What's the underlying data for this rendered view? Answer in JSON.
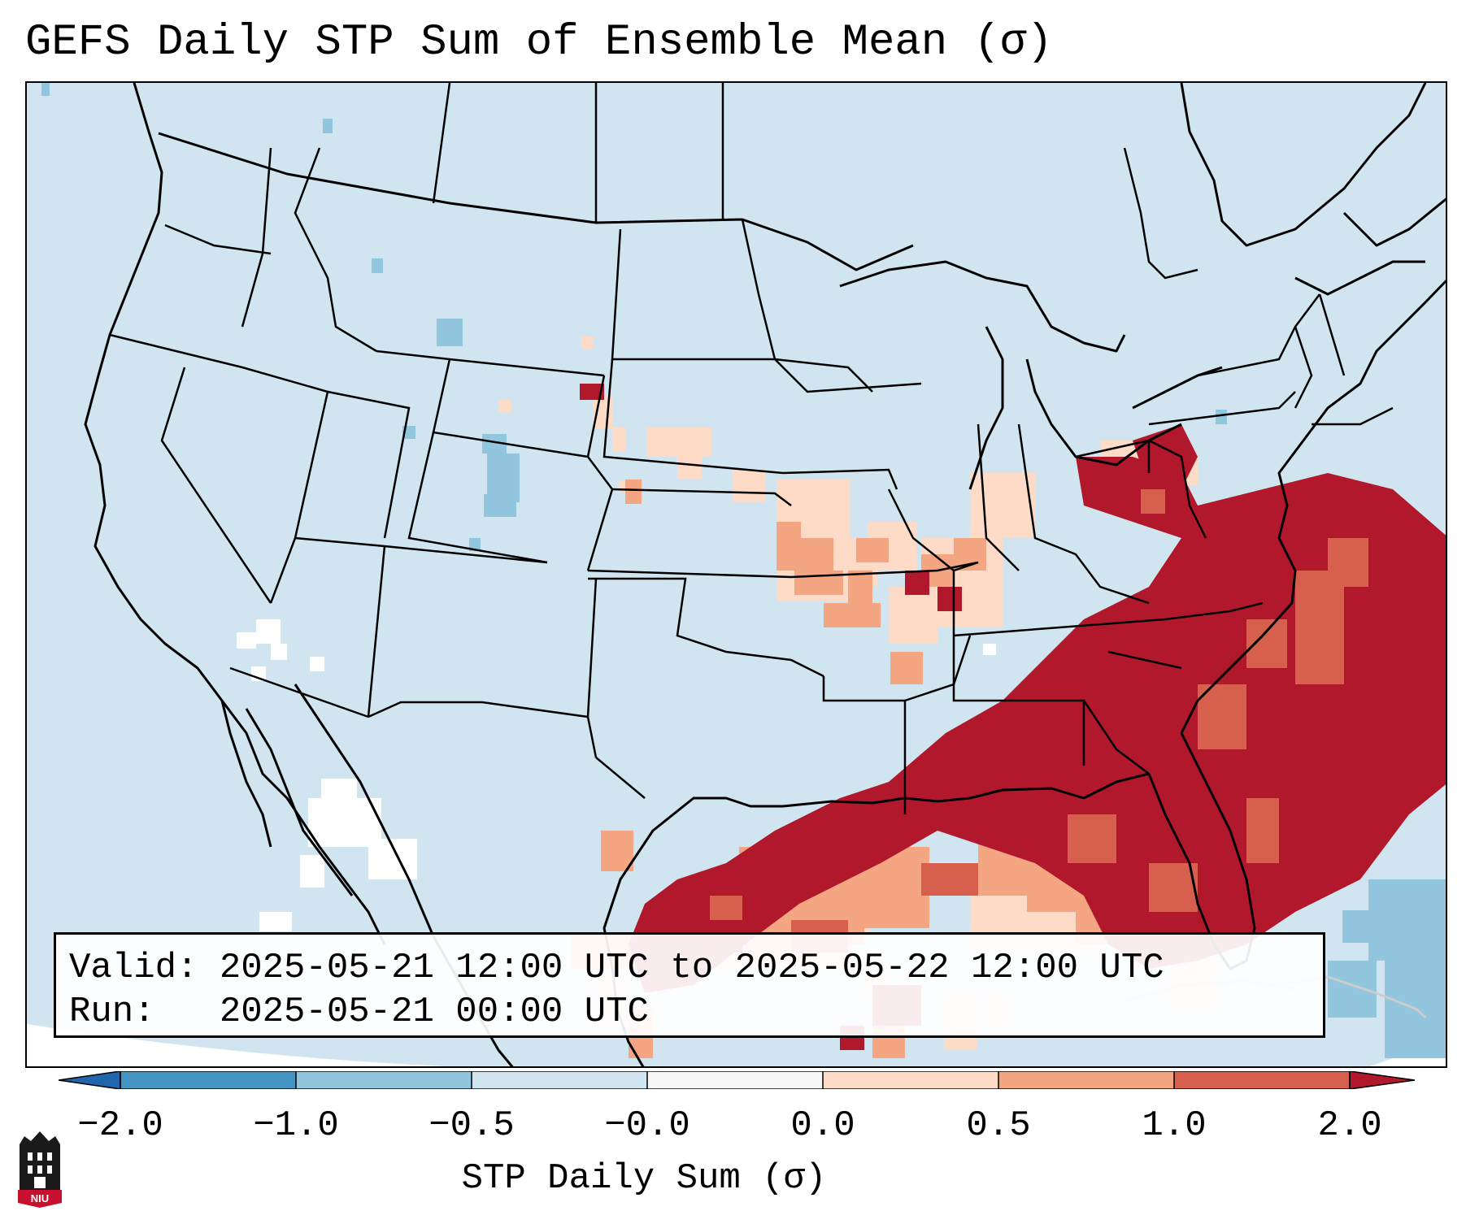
{
  "title": "GEFS Daily STP Sum of Ensemble Mean (σ)",
  "info": {
    "valid_label": "Valid:",
    "valid_value": "2025-05-21 12:00 UTC to 2025-05-22 12:00 UTC",
    "run_label": "Run:",
    "run_value": "2025-05-21 00:00 UTC"
  },
  "colorbar": {
    "label": "STP Daily Sum (σ)",
    "ticks": [
      "−2.0",
      "−1.0",
      "−0.5",
      "−0.0",
      "0.0",
      "0.5",
      "1.0",
      "2.0"
    ],
    "colors": {
      "extend_low": "#2166ac",
      "bin_m2_m1": "#4393c3",
      "bin_m1_m05": "#92c5de",
      "bin_m05_0": "#d1e5f0",
      "bin_0_0": "#f7f7f7",
      "bin_0_05": "#fddbc7",
      "bin_05_1": "#f4a582",
      "bin_1_2": "#d6604d",
      "extend_high": "#b2182b"
    }
  },
  "map": {
    "background_color": "#d1e5f0",
    "border_color": "#000000"
  },
  "logo": {
    "text": "NIU"
  }
}
